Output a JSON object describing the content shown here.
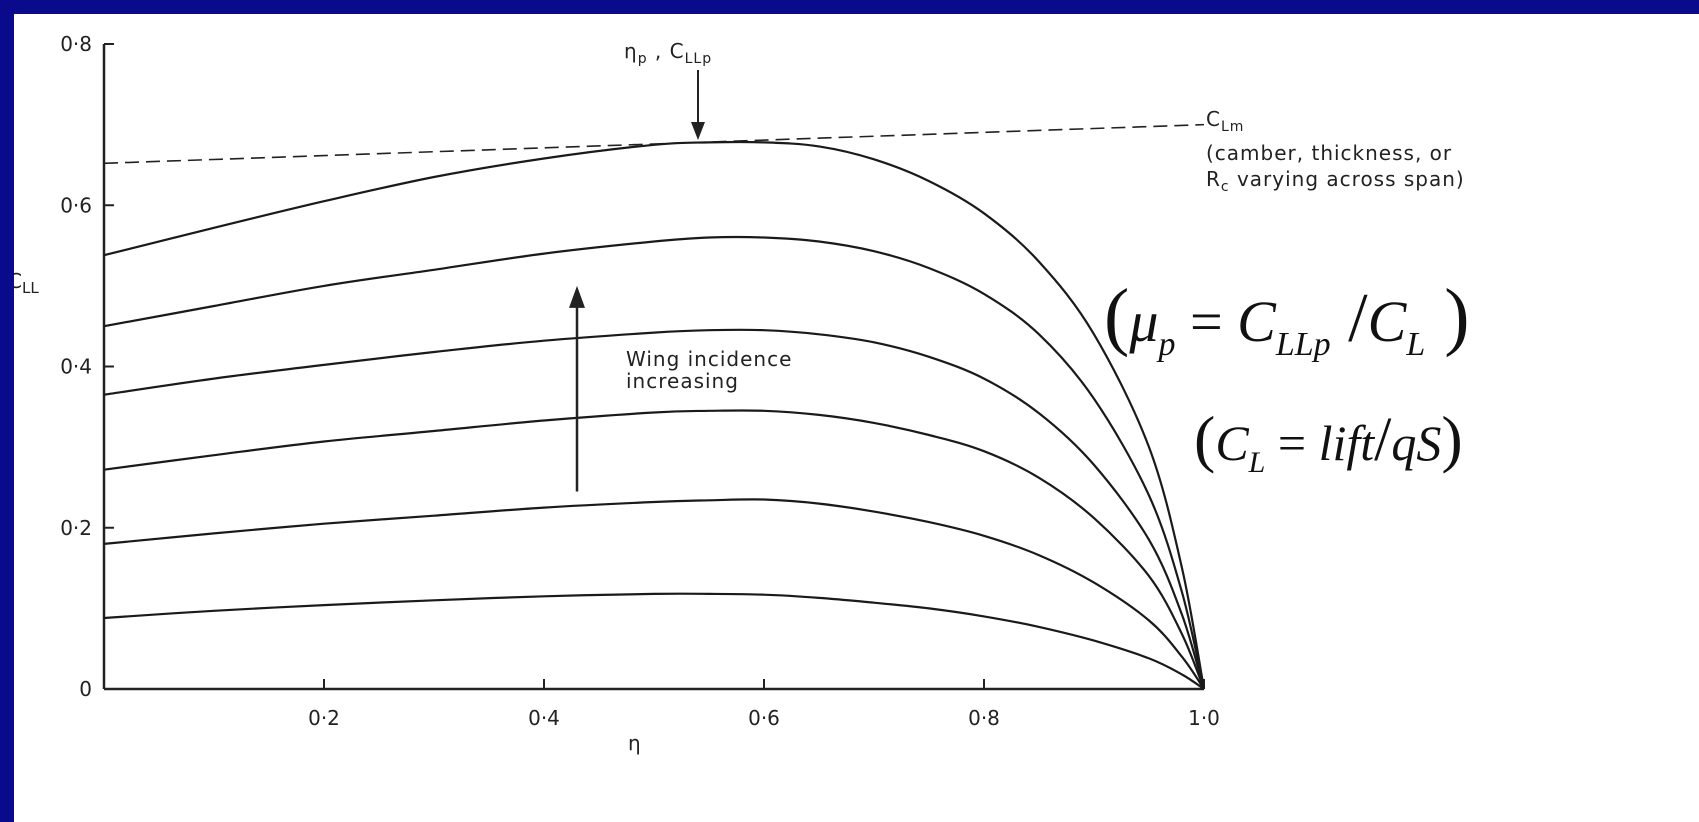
{
  "chart_data": {
    "type": "line",
    "xlabel": "η",
    "ylabel": "CLL",
    "xlim": [
      0,
      1.0
    ],
    "ylim": [
      0,
      0.8
    ],
    "x_ticks": [
      "0·2",
      "0·4",
      "0·6",
      "0·8",
      "1·0"
    ],
    "y_ticks": [
      "0",
      "0·2",
      "0·4",
      "0·6",
      "0·8"
    ],
    "grid": false,
    "x": [
      0,
      0.1,
      0.2,
      0.3,
      0.4,
      0.5,
      0.55,
      0.6,
      0.65,
      0.7,
      0.75,
      0.8,
      0.85,
      0.9,
      0.95,
      0.98,
      1.0
    ],
    "series": [
      {
        "values": [
          0.088,
          0.097,
          0.104,
          0.11,
          0.115,
          0.118,
          0.118,
          0.117,
          0.113,
          0.107,
          0.1,
          0.09,
          0.077,
          0.06,
          0.038,
          0.018,
          0.0
        ]
      },
      {
        "values": [
          0.18,
          0.193,
          0.205,
          0.215,
          0.225,
          0.232,
          0.234,
          0.235,
          0.23,
          0.22,
          0.207,
          0.19,
          0.166,
          0.132,
          0.085,
          0.04,
          0.0
        ]
      },
      {
        "values": [
          0.272,
          0.29,
          0.307,
          0.32,
          0.333,
          0.343,
          0.345,
          0.345,
          0.34,
          0.33,
          0.315,
          0.295,
          0.262,
          0.212,
          0.14,
          0.068,
          0.0
        ]
      },
      {
        "values": [
          0.365,
          0.385,
          0.402,
          0.418,
          0.432,
          0.442,
          0.445,
          0.445,
          0.44,
          0.43,
          0.412,
          0.385,
          0.342,
          0.278,
          0.185,
          0.092,
          0.0
        ]
      },
      {
        "values": [
          0.45,
          0.475,
          0.5,
          0.52,
          0.54,
          0.555,
          0.56,
          0.56,
          0.555,
          0.543,
          0.522,
          0.49,
          0.44,
          0.36,
          0.24,
          0.12,
          0.0
        ]
      },
      {
        "values": [
          0.538,
          0.572,
          0.605,
          0.635,
          0.658,
          0.675,
          0.678,
          0.678,
          0.673,
          0.657,
          0.63,
          0.59,
          0.53,
          0.44,
          0.3,
          0.15,
          0.0
        ]
      }
    ],
    "reference_line": {
      "style": "dashed",
      "x": [
        0,
        1.0
      ],
      "values": [
        0.652,
        0.7
      ]
    },
    "annotations": {
      "peak_label": "ηp , CLLp",
      "clm_label": "CLm",
      "clm_note_line1": "(camber, thickness, or",
      "clm_note_line2": "Rc varying across span)",
      "arrow_label_line1": "Wing incidence",
      "arrow_label_line2": "increasing",
      "peak_x": 0.54,
      "arrow_x": 0.43,
      "arrow_y": [
        0.245,
        0.5
      ]
    },
    "equations": {
      "eq1": "(μp = CLLp / CL)",
      "eq2": "(CL = lift/qS)"
    }
  }
}
